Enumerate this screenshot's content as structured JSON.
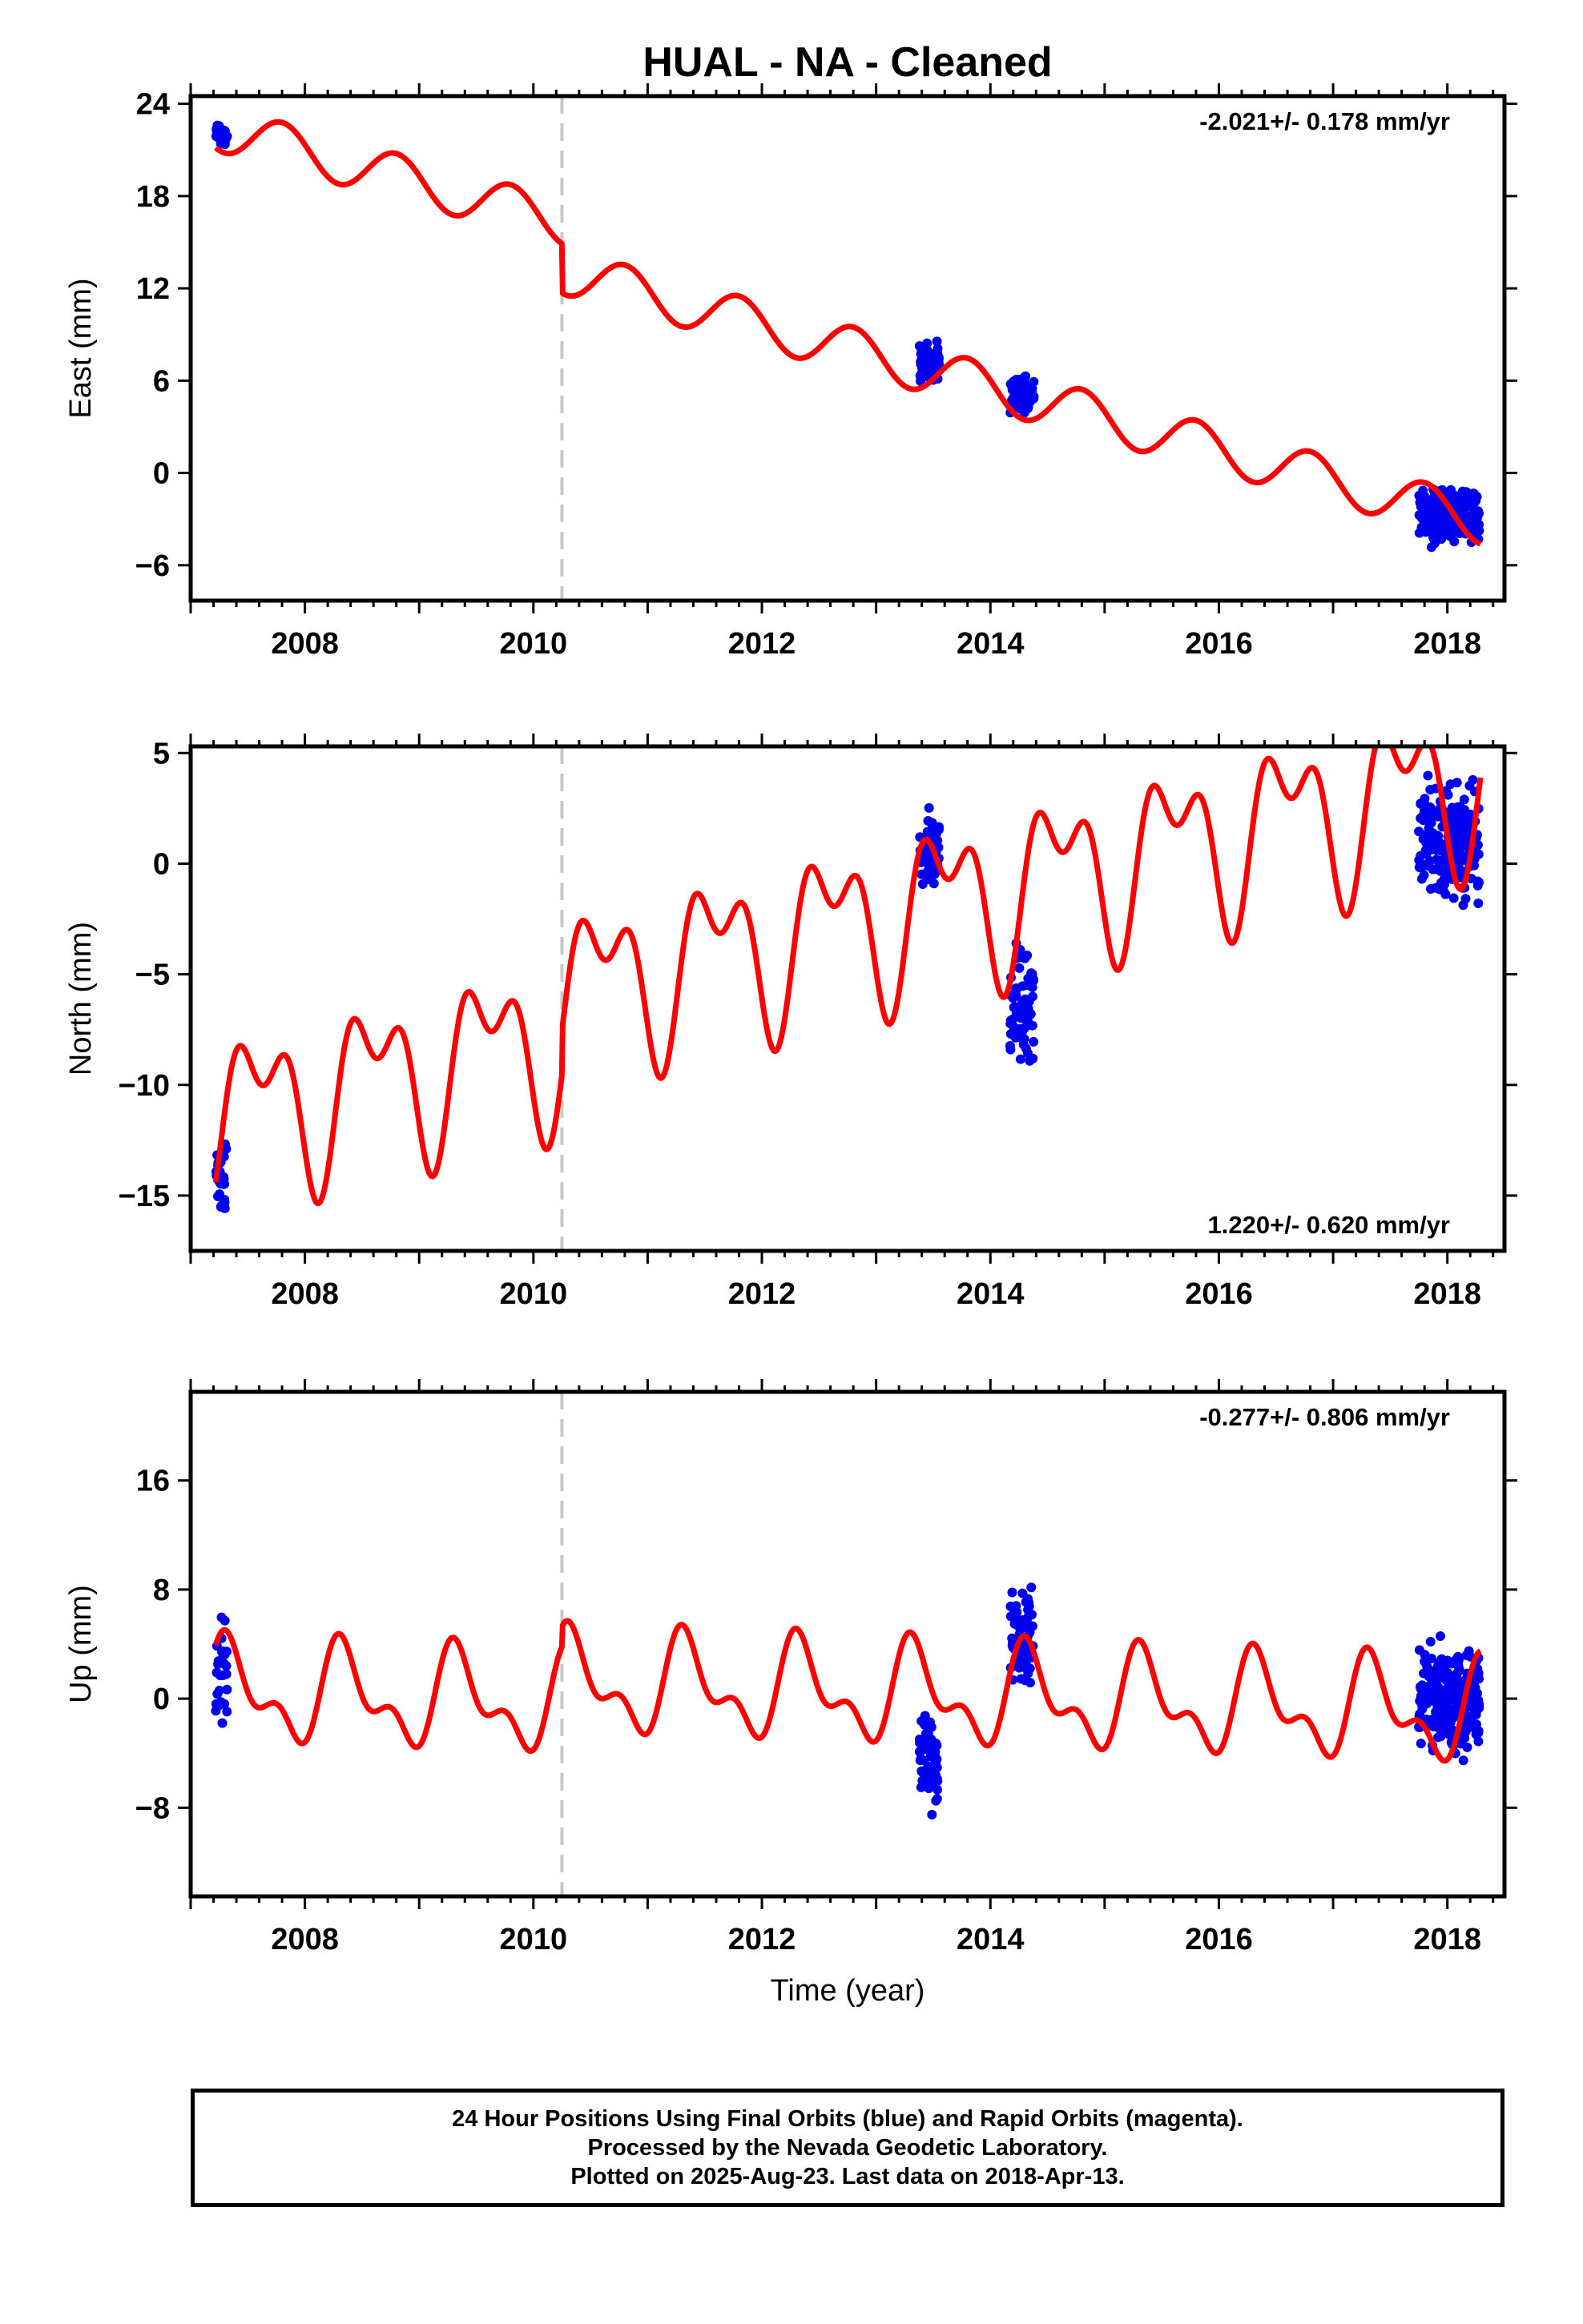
{
  "title": "HUAL  - NA - Cleaned",
  "colors": {
    "data_points": "#0000ee",
    "model": "#ff0000",
    "offset_line": "#c8c8c8",
    "frame": "#000000"
  },
  "footer": {
    "line1": "24 Hour Positions Using Final Orbits (blue) and Rapid Orbits (magenta).",
    "line2": "Processed by the Nevada Geodetic Laboratory.",
    "line3": "Plotted on 2025-Aug-23. Last data on 2018-Apr-13."
  },
  "chart_data": [
    {
      "type": "scatter",
      "panel": "east",
      "title": "",
      "ylabel": "East (mm)",
      "xlabel": "",
      "xlim": [
        2007.0,
        2018.5
      ],
      "ylim": [
        -8.3,
        24.5
      ],
      "x_ticks": [
        2008,
        2010,
        2012,
        2014,
        2016,
        2018
      ],
      "x_tick_labels": [
        "2008",
        "2010",
        "2012",
        "2014",
        "2016",
        "2018"
      ],
      "y_ticks": [
        -6,
        0,
        6,
        12,
        18,
        24
      ],
      "y_tick_labels": [
        "−6",
        "0",
        "6",
        "12",
        "18",
        "24"
      ],
      "velocity_label": "-2.021+/- 0.178 mm/yr",
      "velocity_position": "top-right",
      "offset_epoch": 2010.25,
      "grid": false,
      "model": {
        "name": "",
        "trend": {
          "t0": 2007.2,
          "y0": 22.5,
          "rate": -2.021
        },
        "annual": {
          "amp": 1.5,
          "phase": 0.55
        },
        "semiannual": {
          "amp": 0.0,
          "phase": 0.0
        },
        "steps": [
          {
            "t": 2010.25,
            "dy": -3.2
          }
        ]
      },
      "observations": [
        {
          "t_start": 2007.22,
          "t_end": 2007.32,
          "count": 30,
          "center": 22.0,
          "spread": 1.2
        },
        {
          "t_start": 2013.38,
          "t_end": 2013.55,
          "count": 70,
          "center": 7.2,
          "spread": 1.8
        },
        {
          "t_start": 2014.17,
          "t_end": 2014.38,
          "count": 70,
          "center": 5.0,
          "spread": 1.6
        },
        {
          "t_start": 2017.75,
          "t_end": 2018.28,
          "count": 230,
          "center": -2.6,
          "spread": 2.5
        }
      ]
    },
    {
      "type": "scatter",
      "panel": "north",
      "title": "",
      "ylabel": "North (mm)",
      "xlabel": "",
      "xlim": [
        2007.0,
        2018.5
      ],
      "ylim": [
        -17.5,
        5.3
      ],
      "x_ticks": [
        2008,
        2010,
        2012,
        2014,
        2016,
        2018
      ],
      "x_tick_labels": [
        "2008",
        "2010",
        "2012",
        "2014",
        "2016",
        "2018"
      ],
      "y_ticks": [
        -15,
        -10,
        -5,
        0,
        5
      ],
      "y_tick_labels": [
        "−15",
        "−10",
        "−5",
        "0",
        "5"
      ],
      "velocity_label": "1.220+/- 0.620 mm/yr",
      "velocity_position": "bottom-right",
      "offset_epoch": 2010.25,
      "grid": false,
      "model": {
        "name": "",
        "trend": {
          "t0": 2007.2,
          "y0": -11.5,
          "rate": 1.22
        },
        "annual": {
          "amp": 3.0,
          "phase": 0.35
        },
        "semiannual": {
          "amp": 2.0,
          "phase": 0.25
        },
        "steps": [
          {
            "t": 2010.25,
            "dy": 2.0
          }
        ]
      },
      "observations": [
        {
          "t_start": 2007.22,
          "t_end": 2007.32,
          "count": 30,
          "center": -14.5,
          "spread": 2.6
        },
        {
          "t_start": 2013.38,
          "t_end": 2013.55,
          "count": 70,
          "center": 0.5,
          "spread": 2.4
        },
        {
          "t_start": 2014.17,
          "t_end": 2014.38,
          "count": 70,
          "center": -6.5,
          "spread": 3.5
        },
        {
          "t_start": 2017.75,
          "t_end": 2018.28,
          "count": 230,
          "center": 1.0,
          "spread": 3.2
        }
      ]
    },
    {
      "type": "scatter",
      "panel": "up",
      "title": "",
      "ylabel": "Up (mm)",
      "xlabel": "Time (year)",
      "xlim": [
        2007.0,
        2018.5
      ],
      "ylim": [
        -14.5,
        22.5
      ],
      "x_ticks": [
        2008,
        2010,
        2012,
        2014,
        2016,
        2018
      ],
      "x_tick_labels": [
        "2008",
        "2010",
        "2012",
        "2014",
        "2016",
        "2018"
      ],
      "y_ticks": [
        -8,
        0,
        8,
        16
      ],
      "y_tick_labels": [
        "−8",
        "0",
        "8",
        "16"
      ],
      "velocity_label": "-0.277+/- 0.806 mm/yr",
      "velocity_position": "top-right",
      "offset_epoch": 2010.25,
      "grid": false,
      "model": {
        "name": "",
        "trend": {
          "t0": 2007.2,
          "y0": 0.5,
          "rate": -0.277
        },
        "annual": {
          "amp": 3.0,
          "phase": 0.1
        },
        "semiannual": {
          "amp": 1.8,
          "phase": 0.15
        },
        "steps": [
          {
            "t": 2010.25,
            "dy": 1.5
          }
        ]
      },
      "observations": [
        {
          "t_start": 2007.22,
          "t_end": 2007.32,
          "count": 30,
          "center": 2.0,
          "spread": 4.5
        },
        {
          "t_start": 2013.38,
          "t_end": 2013.55,
          "count": 70,
          "center": -4.5,
          "spread": 5.0
        },
        {
          "t_start": 2014.17,
          "t_end": 2014.38,
          "count": 70,
          "center": 4.5,
          "spread": 5.5
        },
        {
          "t_start": 2017.75,
          "t_end": 2018.28,
          "count": 230,
          "center": 0.0,
          "spread": 5.5
        }
      ]
    }
  ]
}
